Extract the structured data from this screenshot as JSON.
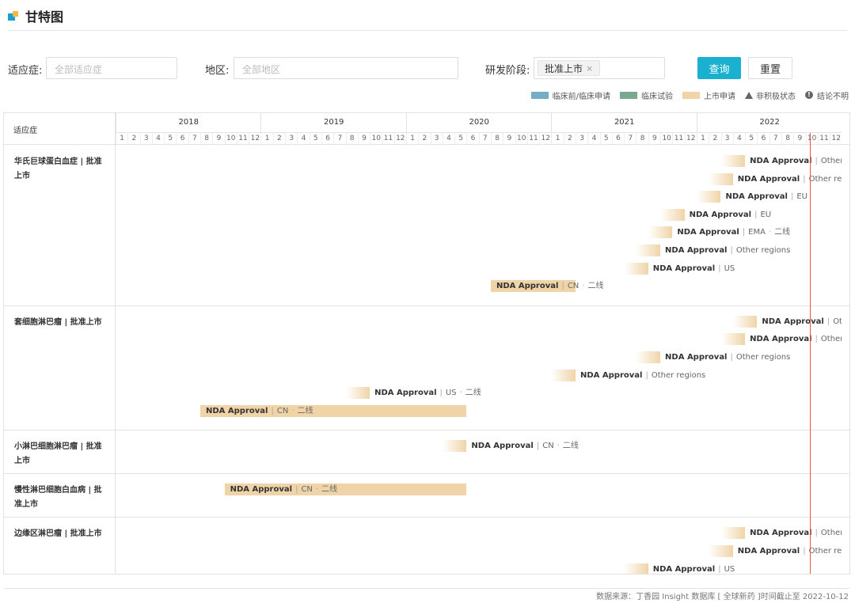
{
  "title": "甘特图",
  "filters": {
    "indication_label": "适应症:",
    "indication_placeholder": "全部适应症",
    "region_label": "地区:",
    "region_placeholder": "全部地区",
    "phase_label": "研发阶段:",
    "phase_tag": "批准上市",
    "phase_tag_close": "×",
    "query_button": "查询",
    "reset_button": "重置"
  },
  "legend": [
    {
      "label": "临床前/临床申请",
      "color": "#74aec4",
      "kind": "swatch",
      "icon": "color-swatch"
    },
    {
      "label": "临床试验",
      "color": "#7aa88e",
      "kind": "swatch",
      "icon": "color-swatch"
    },
    {
      "label": "上市申请",
      "color": "#f0d4a8",
      "kind": "swatch",
      "icon": "color-swatch"
    },
    {
      "label": "非积极状态",
      "kind": "triangle",
      "icon": "triangle-icon"
    },
    {
      "label": "结论不明",
      "kind": "info",
      "icon": "info-icon",
      "glyph": "!"
    }
  ],
  "gantt": {
    "column_header": "适应症",
    "years": [
      "2018",
      "2019",
      "2020",
      "2021",
      "2022"
    ],
    "months": [
      "1",
      "2",
      "3",
      "4",
      "5",
      "6",
      "7",
      "8",
      "9",
      "10",
      "11",
      "12"
    ],
    "rows": [
      {
        "label": "华氏巨球蛋白血症 | 批准上市",
        "bars": [
          {
            "title": "NDA Approval",
            "region": "Other regions",
            "suffix": "",
            "start": "2022-03",
            "end": "2022-05",
            "fade": true
          },
          {
            "title": "NDA Approval",
            "region": "Other regions",
            "suffix": "",
            "start": "2022-02",
            "end": "2022-04",
            "fade": true
          },
          {
            "title": "NDA Approval",
            "region": "EU",
            "suffix": "",
            "start": "2022-01",
            "end": "2022-03",
            "fade": true
          },
          {
            "title": "NDA Approval",
            "region": "EU",
            "suffix": "",
            "start": "2021-10",
            "end": "2021-12",
            "fade": true
          },
          {
            "title": "NDA Approval",
            "region": "EMA",
            "suffix": "二线",
            "start": "2021-09",
            "end": "2021-11",
            "fade": true
          },
          {
            "title": "NDA Approval",
            "region": "Other regions",
            "suffix": "",
            "start": "2021-08",
            "end": "2021-10",
            "fade": true
          },
          {
            "title": "NDA Approval",
            "region": "US",
            "suffix": "",
            "start": "2021-07",
            "end": "2021-09",
            "fade": true
          },
          {
            "title": "NDA Approval",
            "region": "CN",
            "suffix": "二线",
            "start": "2020-08",
            "end": "2021-03",
            "fade": false
          }
        ]
      },
      {
        "label": "套细胞淋巴瘤 | 批准上市",
        "bars": [
          {
            "title": "NDA Approval",
            "region": "Other regions",
            "suffix": "",
            "start": "2022-04",
            "end": "2022-06",
            "fade": true
          },
          {
            "title": "NDA Approval",
            "region": "Other regions",
            "suffix": "",
            "start": "2022-03",
            "end": "2022-05",
            "fade": true
          },
          {
            "title": "NDA Approval",
            "region": "Other regions",
            "suffix": "",
            "start": "2021-08",
            "end": "2021-10",
            "fade": true
          },
          {
            "title": "NDA Approval",
            "region": "Other regions",
            "suffix": "",
            "start": "2021-01",
            "end": "2021-03",
            "fade": true
          },
          {
            "title": "NDA Approval",
            "region": "US",
            "suffix": "二线",
            "start": "2019-08",
            "end": "2019-10",
            "fade": true
          },
          {
            "title": "NDA Approval",
            "region": "CN",
            "suffix": "二线",
            "start": "2018-08",
            "end": "2020-06",
            "fade": false
          }
        ]
      },
      {
        "label": "小淋巴细胞淋巴瘤 | 批准上市",
        "bars": [
          {
            "title": "NDA Approval",
            "region": "CN",
            "suffix": "二线",
            "start": "2020-04",
            "end": "2020-06",
            "fade": true
          }
        ]
      },
      {
        "label": "慢性淋巴细胞白血病 | 批准上市",
        "bars": [
          {
            "title": "NDA Approval",
            "region": "CN",
            "suffix": "二线",
            "start": "2018-10",
            "end": "2020-06",
            "fade": false
          }
        ]
      },
      {
        "label": "边缘区淋巴瘤 | 批准上市",
        "bars": [
          {
            "title": "NDA Approval",
            "region": "Other regions",
            "suffix": "",
            "start": "2022-03",
            "end": "2022-05",
            "fade": true
          },
          {
            "title": "NDA Approval",
            "region": "Other regions",
            "suffix": "",
            "start": "2022-02",
            "end": "2022-04",
            "fade": true
          },
          {
            "title": "NDA Approval",
            "region": "US",
            "suffix": "",
            "start": "2021-07",
            "end": "2021-09",
            "fade": true
          }
        ]
      }
    ],
    "today": "2022-10-12",
    "bar_color": "#f0d4a8",
    "today_color": "#e8584a"
  },
  "footer": "数据来源：丁香园 Insight 数据库 [ 全球新药 ]时间截止至 2022-10-12"
}
